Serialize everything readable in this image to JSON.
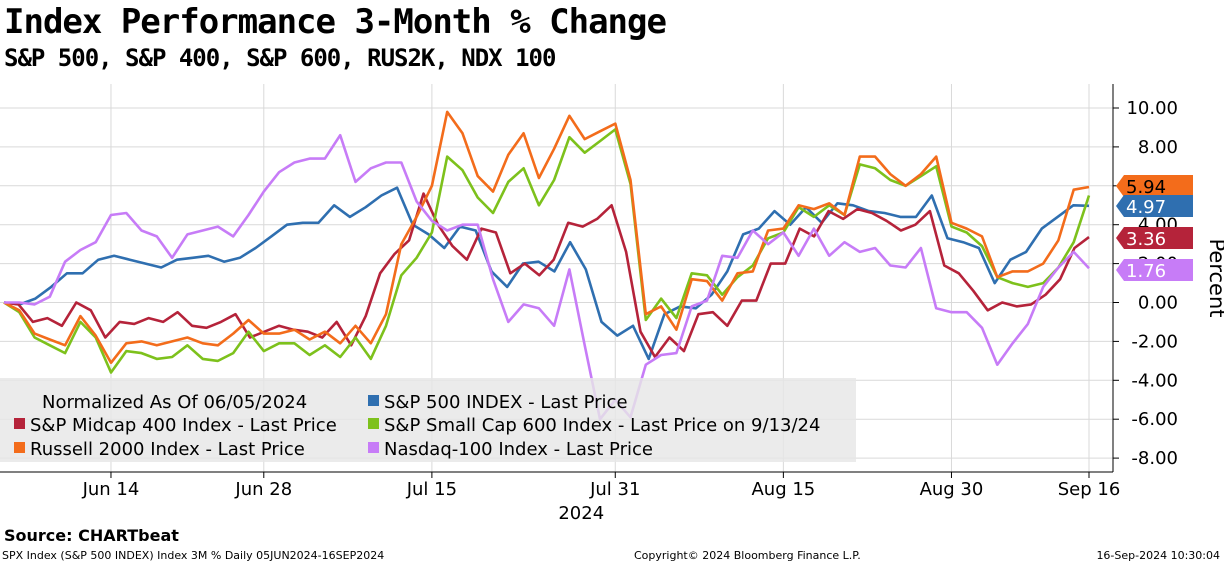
{
  "title": "Index Performance 3-Month % Change",
  "subtitle": "S&P 500, S&P 400, S&P 600, RUS2K, NDX 100",
  "source": "Source:  CHARTbeat",
  "footer": {
    "left": "SPX Index (S&P 500 INDEX) Index 3M %  Daily 05JUN2024-16SEP2024",
    "middle": "Copyright© 2024 Bloomberg Finance L.P.",
    "right": "16-Sep-2024 10:30:04"
  },
  "chart_data": {
    "type": "line",
    "title": "Index Performance 3-Month % Change",
    "xlabel": "2024",
    "ylabel": "Percent",
    "ylim": [
      -8.9,
      11.2
    ],
    "yticks": [
      "10.00",
      "8.00",
      "6.00",
      "4.00",
      "2.00",
      "0.00",
      "-2.00",
      "-4.00",
      "-6.00",
      "-8.00"
    ],
    "ytick_values": [
      10,
      8,
      6,
      4,
      2,
      0,
      -2,
      -4,
      -6,
      -8
    ],
    "xticks": [
      "Jun 14",
      "Jun 28",
      "Jul 15",
      "Jul 31",
      "Aug 15",
      "Aug 30",
      "Sep 16"
    ],
    "xtick_days": [
      7,
      17,
      28,
      40,
      51,
      62,
      71
    ],
    "year_label": "2024",
    "legend_header": "Normalized As Of 06/05/2024",
    "legend_position": "bottom-left",
    "series": [
      {
        "name": "S&P 500 INDEX - Last Price",
        "color": "#2f6fb0",
        "last": "4.97",
        "values": [
          0,
          -0.1,
          0.2,
          0.8,
          1.5,
          1.5,
          2.2,
          2.4,
          2.2,
          2.0,
          1.8,
          2.2,
          2.3,
          2.4,
          2.1,
          2.3,
          2.8,
          3.4,
          4.0,
          4.1,
          4.1,
          5.0,
          4.4,
          4.9,
          5.5,
          5.9,
          4.0,
          3.5,
          2.8,
          3.9,
          3.7,
          1.6,
          0.8,
          2.0,
          2.1,
          1.6,
          3.1,
          1.7,
          -1.0,
          -1.7,
          -1.2,
          -2.9,
          -0.6,
          -0.2,
          -0.3,
          0.4,
          1.6,
          3.5,
          3.8,
          4.7,
          4.0,
          4.9,
          4.1,
          5.1,
          5.0,
          4.7,
          4.6,
          4.4,
          4.4,
          5.5,
          3.3,
          3.1,
          2.8,
          1.0,
          2.2,
          2.6,
          3.8,
          4.4,
          5.0,
          4.97
        ]
      },
      {
        "name": "S&P Midcap 400 Index - Last Price",
        "color": "#b5233a",
        "last": "3.36",
        "values": [
          0,
          -0.1,
          -1.0,
          -0.8,
          -1.2,
          0,
          -0.4,
          -1.8,
          -1.0,
          -1.1,
          -0.8,
          -1.0,
          -0.5,
          -1.2,
          -1.3,
          -1.0,
          -0.6,
          -1.8,
          -1.5,
          -1.2,
          -1.4,
          -1.5,
          -1.8,
          -1.0,
          -2.2,
          -0.7,
          1.5,
          2.5,
          3.2,
          5.6,
          4.0,
          2.9,
          2.2,
          3.8,
          3.6,
          1.5,
          2.0,
          1.4,
          2.2,
          4.1,
          3.9,
          4.3,
          5.0,
          2.6,
          -1.5,
          -2.8,
          -1.8,
          -2.5,
          -0.6,
          -0.5,
          -1.2,
          0.1,
          0.1,
          2.0,
          2.0,
          3.8,
          3.4,
          4.7,
          4.3,
          4.8,
          4.6,
          4.2,
          3.7,
          4.0,
          4.7,
          1.9,
          1.5,
          0.6,
          -0.4,
          0,
          -0.2,
          -0.1,
          0.4,
          1.2,
          2.8,
          3.36
        ]
      },
      {
        "name": "S&P Small Cap 600 Index - Last Price on 9/13/24",
        "color": "#7dc11c",
        "last": "",
        "values": [
          0,
          -0.5,
          -1.8,
          -2.2,
          -2.6,
          -1.0,
          -1.8,
          -3.6,
          -2.5,
          -2.6,
          -2.9,
          -2.8,
          -2.2,
          -2.9,
          -3.0,
          -2.6,
          -1.5,
          -2.5,
          -2.1,
          -2.1,
          -2.7,
          -2.2,
          -2.8,
          -1.8,
          -2.9,
          -1.2,
          1.4,
          2.3,
          3.6,
          7.5,
          6.8,
          5.4,
          4.6,
          6.2,
          6.9,
          5.0,
          6.3,
          8.5,
          7.7,
          8.3,
          8.9,
          6.1,
          -0.9,
          0.2,
          -0.8,
          1.5,
          1.4,
          0.4,
          1.3,
          1.9,
          3.3,
          3.6,
          4.9,
          4.4,
          5.0,
          4.5,
          7.1,
          6.9,
          6.3,
          6.0,
          6.5,
          7.0,
          3.9,
          3.6,
          2.9,
          1.3,
          1.0,
          0.8,
          1.0,
          1.8,
          3.1,
          5.5
        ]
      },
      {
        "name": "Russell 2000 Index - Last Price",
        "color": "#f36c1b",
        "last": "5.94",
        "values": [
          0,
          -0.4,
          -1.6,
          -1.9,
          -2.2,
          -0.7,
          -1.7,
          -3.1,
          -2.1,
          -2.0,
          -2.2,
          -2.0,
          -1.8,
          -2.1,
          -2.2,
          -1.6,
          -0.9,
          -1.6,
          -1.6,
          -1.4,
          -1.9,
          -1.5,
          -2.1,
          -1.2,
          -2.1,
          -0.6,
          3.0,
          4.4,
          6.0,
          9.8,
          8.7,
          6.5,
          5.7,
          7.6,
          8.7,
          6.4,
          7.9,
          9.6,
          8.4,
          8.8,
          9.2,
          6.3,
          -0.6,
          -0.2,
          -1.4,
          1.2,
          1.1,
          0.1,
          1.5,
          1.6,
          3.7,
          3.8,
          5.0,
          4.8,
          5.1,
          4.5,
          7.5,
          7.5,
          6.6,
          6.0,
          6.6,
          7.5,
          4.1,
          3.8,
          3.4,
          1.3,
          1.6,
          1.6,
          2.0,
          3.2,
          5.8,
          5.94
        ]
      },
      {
        "name": "Nasdaq-100 Index - Last Price",
        "color": "#c77cf7",
        "last": "1.76",
        "values": [
          0,
          0,
          -0.1,
          0.3,
          2.1,
          2.7,
          3.1,
          4.5,
          4.6,
          3.7,
          3.4,
          2.3,
          3.5,
          3.7,
          3.9,
          3.4,
          4.5,
          5.7,
          6.7,
          7.2,
          7.4,
          7.4,
          8.6,
          6.2,
          6.9,
          7.2,
          7.2,
          5.2,
          4.2,
          3.7,
          4.0,
          4.0,
          1.2,
          -1.0,
          -0.1,
          -0.3,
          -1.2,
          1.7,
          -2.2,
          -6.0,
          -5.0,
          -5.9,
          -3.2,
          -2.7,
          -2.6,
          -0.2,
          0.1,
          2.4,
          2.3,
          3.7,
          3.0,
          3.6,
          2.4,
          3.8,
          2.4,
          3.1,
          2.6,
          2.8,
          1.9,
          1.8,
          2.8,
          -0.3,
          -0.5,
          -0.5,
          -1.3,
          -3.2,
          -2.1,
          -1.1,
          0.8,
          1.8,
          2.6,
          1.76
        ]
      }
    ]
  }
}
